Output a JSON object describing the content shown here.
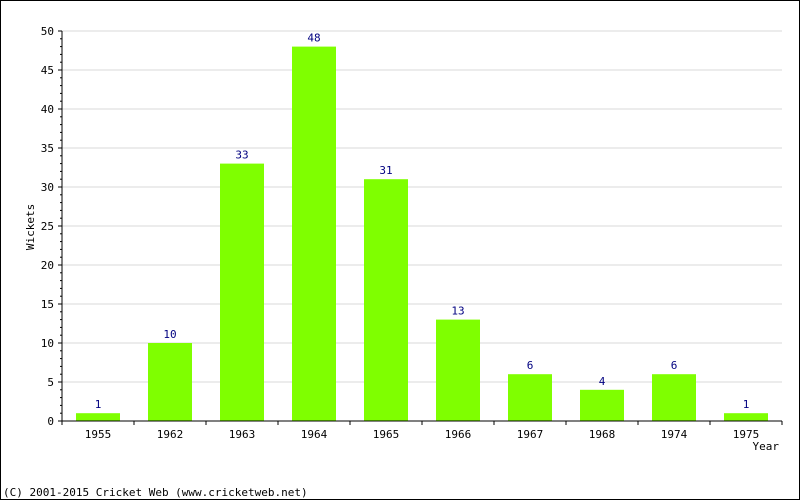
{
  "chart_data": {
    "type": "bar",
    "categories": [
      "1955",
      "1962",
      "1963",
      "1964",
      "1965",
      "1966",
      "1967",
      "1968",
      "1974",
      "1975"
    ],
    "values": [
      1,
      10,
      33,
      48,
      31,
      13,
      6,
      4,
      6,
      1
    ],
    "xlabel": "Year",
    "ylabel": "Wickets",
    "ylim": [
      0,
      50
    ],
    "yticks": [
      0,
      5,
      10,
      15,
      20,
      25,
      30,
      35,
      40,
      45,
      50
    ],
    "grid": true,
    "data_labels": true,
    "legend": "none",
    "colors": {
      "bar": "#7fff00",
      "data_label": "#000080",
      "text": "#000000",
      "grid": "#d9d9d9",
      "axis": "#000000"
    }
  },
  "footer": {
    "copyright": "(C) 2001-2015 Cricket Web (www.cricketweb.net)"
  }
}
